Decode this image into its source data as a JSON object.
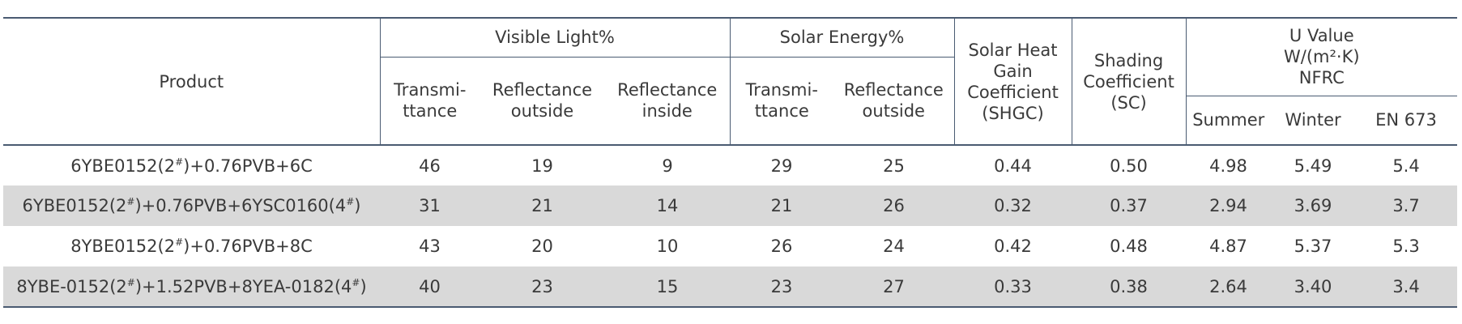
{
  "table": {
    "header": {
      "product": "Product",
      "visible_light": "Visible Light%",
      "solar_energy": "Solar Energy%",
      "shgc": [
        "Solar Heat",
        "Gain",
        "Coefficient",
        "(SHGC)"
      ],
      "sc": [
        "Shading",
        "Coefficient",
        "(SC)"
      ],
      "u_value": [
        "U Value",
        "W/(m²·K)",
        "NFRC"
      ],
      "vl_transmittance": [
        "Transmi-",
        "ttance"
      ],
      "vl_reflectance_outside": [
        "Reflectance",
        "outside"
      ],
      "vl_reflectance_inside": [
        "Reflectance",
        "inside"
      ],
      "se_transmittance": [
        "Transmi-",
        "ttance"
      ],
      "se_reflectance_outside": [
        "Reflectance",
        "outside"
      ],
      "summer": "Summer",
      "winter": "Winter",
      "en673": "EN 673"
    },
    "rows": [
      [
        "6YBE0152(2#)+0.76PVB+6C",
        "46",
        "19",
        "9",
        "29",
        "25",
        "0.44",
        "0.50",
        "4.98",
        "5.49",
        "5.4"
      ],
      [
        "6YBE0152(2#)+0.76PVB+6YSC0160(4#)",
        "31",
        "21",
        "14",
        "21",
        "26",
        "0.32",
        "0.37",
        "2.94",
        "3.69",
        "3.7"
      ],
      [
        "8YBE0152(2#)+0.76PVB+8C",
        "43",
        "20",
        "10",
        "26",
        "24",
        "0.42",
        "0.48",
        "4.87",
        "5.37",
        "5.3"
      ],
      [
        "8YBE-0152(2#)+1.52PVB+8YEA-0182(4#)",
        "40",
        "23",
        "15",
        "23",
        "27",
        "0.33",
        "0.38",
        "2.64",
        "3.40",
        "3.4"
      ]
    ]
  }
}
